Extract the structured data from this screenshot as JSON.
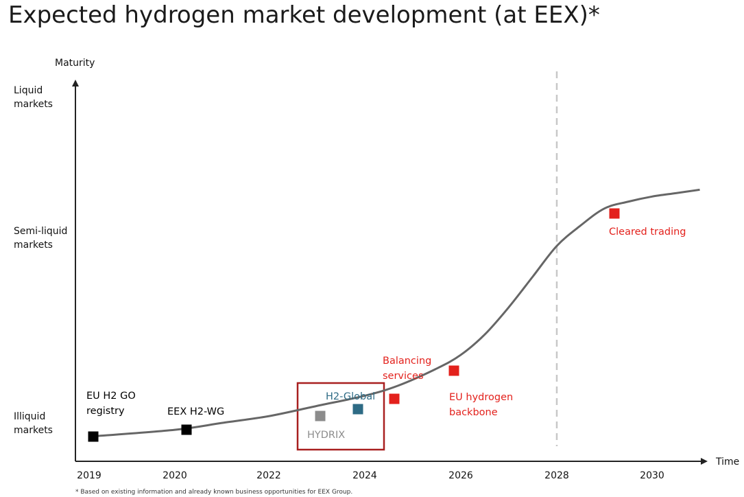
{
  "title": "Expected hydrogen market development (at EEX)*",
  "footnote": "* Based on existing information and already known business opportunities for EEX Group.",
  "colors": {
    "curve": "#666666",
    "black": "#000000",
    "red": "#e3211c",
    "teal": "#2e6b85",
    "grey": "#8c8c8c",
    "box": "#a81f1f",
    "dashed": "#c8c8c8"
  },
  "chart_data": {
    "type": "line",
    "title": "Expected hydrogen market development (at EEX)*",
    "xlabel": "Time",
    "ylabel": "Maturity",
    "x_ticks": [
      "2019",
      "2020",
      "2022",
      "2024",
      "2026",
      "2028",
      "2030"
    ],
    "y_levels": [
      {
        "label": [
          "Liquid",
          "markets"
        ],
        "value": 1.0
      },
      {
        "label": [
          "Semi-liquid",
          "markets"
        ],
        "value": 0.55
      },
      {
        "label": [
          "Illiquid",
          "markets"
        ],
        "value": 0.0
      }
    ],
    "xlim": [
      2019,
      2031
    ],
    "ylim": [
      -0.02,
      1.1
    ],
    "reference_line": {
      "x": 2028,
      "style": "dashed"
    },
    "series": [
      {
        "x": [
          2019,
          2020,
          2021,
          2022,
          2023,
          2024,
          2024.7,
          2025.5,
          2026,
          2026.5,
          2027,
          2027.5,
          2028,
          2028.5,
          2029,
          2029.5,
          2030,
          2030.5,
          2031
        ],
        "values": [
          0.0,
          0.02,
          0.04,
          0.06,
          0.09,
          0.12,
          0.15,
          0.2,
          0.24,
          0.3,
          0.38,
          0.47,
          0.56,
          0.62,
          0.67,
          0.69,
          0.705,
          0.715,
          0.725
        ]
      }
    ],
    "milestones": [
      {
        "label": [
          "EU H2 GO",
          "registry"
        ],
        "x": 2019,
        "y": 0.0,
        "color": "black"
      },
      {
        "label": [
          "EEX H2-WG"
        ],
        "x": 2020.2,
        "y": 0.02,
        "color": "black"
      },
      {
        "label": [
          "HYDRIX"
        ],
        "x": 2023.5,
        "y": 0.065,
        "color": "grey"
      },
      {
        "label": [
          "H2-Global"
        ],
        "x": 2023.9,
        "y": 0.09,
        "color": "teal"
      },
      {
        "label": [
          "Balancing",
          "services"
        ],
        "x": 2024.7,
        "y": 0.12,
        "color": "red"
      },
      {
        "label": [
          "EU hydrogen",
          "backbone"
        ],
        "x": 2025.9,
        "y": 0.2,
        "color": "red"
      },
      {
        "label": [
          "Cleared trading"
        ],
        "x": 2029.2,
        "y": 0.69,
        "color": "red"
      }
    ]
  }
}
